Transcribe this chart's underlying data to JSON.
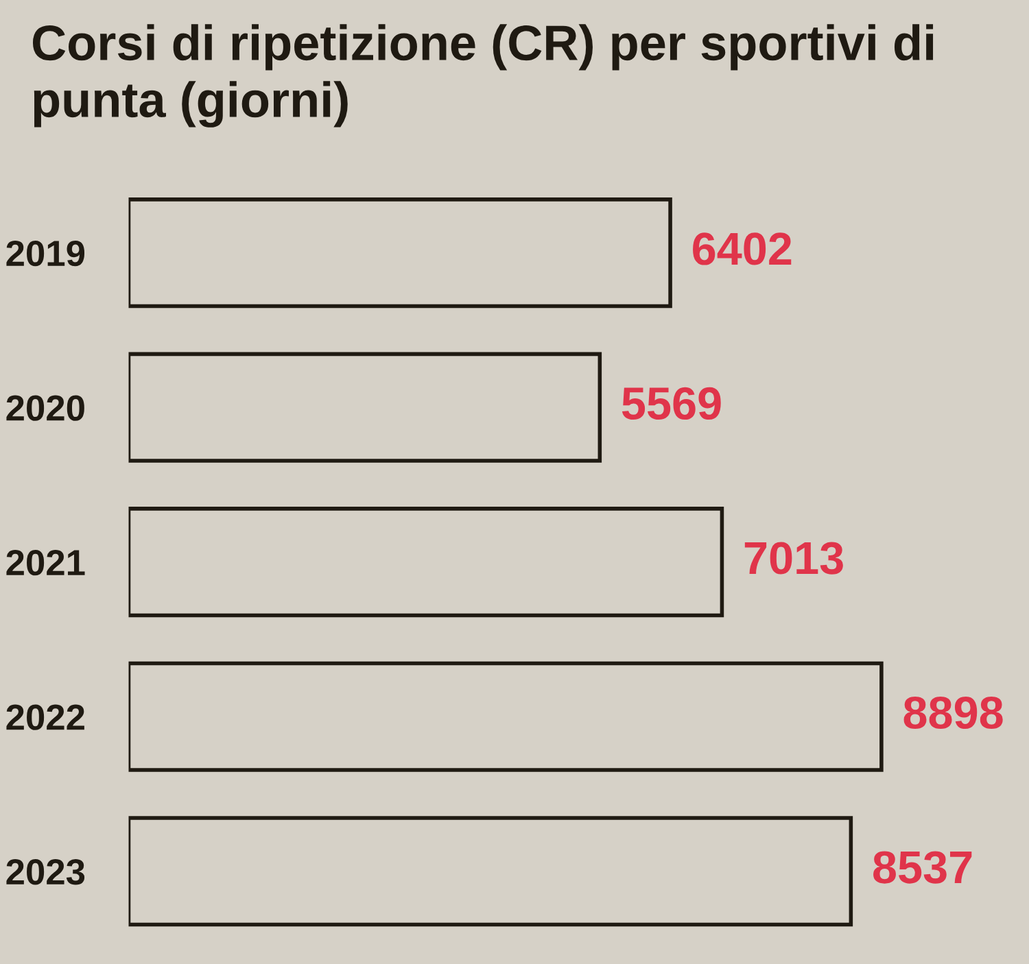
{
  "chart_data": {
    "type": "bar",
    "orientation": "horizontal",
    "title": "Corsi di ripetizione (CR) per sportivi di punta (giorni)",
    "categories": [
      "2019",
      "2020",
      "2021",
      "2022",
      "2023"
    ],
    "values": [
      6402,
      5569,
      7013,
      8898,
      8537
    ],
    "color": "#d6d1c7",
    "data_labels": true,
    "grid": false,
    "legend": false,
    "tick_labels": "y"
  }
}
